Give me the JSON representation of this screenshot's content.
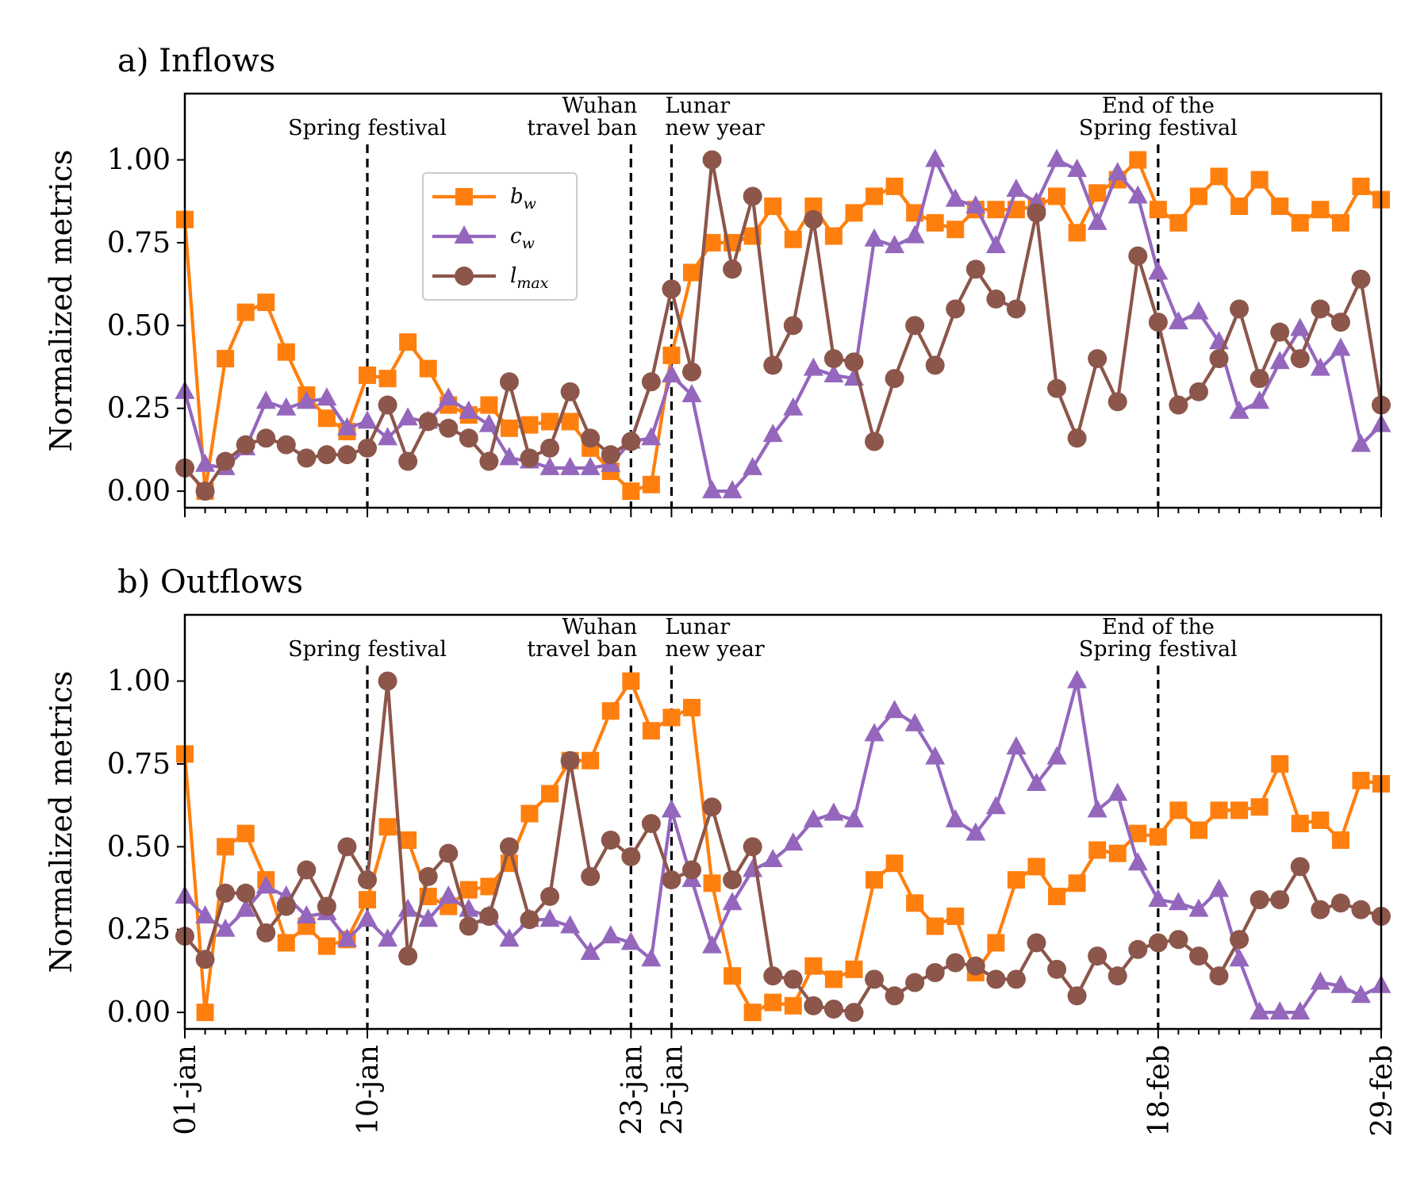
{
  "chart_data": {
    "type": "line",
    "x_labels": [
      "01-jan",
      "10-jan",
      "23-jan",
      "25-jan",
      "18-feb",
      "29-feb"
    ],
    "x_label_days": [
      1,
      10,
      23,
      25,
      49,
      60
    ],
    "x_range": [
      1,
      60
    ],
    "ylabel": "Normalized metrics",
    "yticks": [
      "0.00",
      "0.25",
      "0.50",
      "0.75",
      "1.00"
    ],
    "ytick_values": [
      0,
      0.25,
      0.5,
      0.75,
      1.0
    ],
    "ylim": [
      -0.05,
      1.2
    ],
    "events": [
      {
        "day": 10,
        "label_lines": [
          "Spring festival"
        ]
      },
      {
        "day": 23,
        "label_lines": [
          "Wuhan",
          "travel ban"
        ]
      },
      {
        "day": 25,
        "label_lines": [
          "Lunar",
          "new year"
        ]
      },
      {
        "day": 49,
        "label_lines": [
          "End of the",
          "Spring festival"
        ]
      }
    ],
    "legend": {
      "position": "upper-center",
      "entries": [
        {
          "series": "b_w",
          "base": "b",
          "sub": "w"
        },
        {
          "series": "c_w",
          "base": "c",
          "sub": "w"
        },
        {
          "series": "l_max",
          "base": "l",
          "sub": "max"
        }
      ]
    },
    "colors": {
      "b_w": "#ff7f0e",
      "c_w": "#9467bd",
      "l_max": "#8c564b"
    },
    "markers": {
      "b_w": "square",
      "c_w": "triangle",
      "l_max": "circle"
    },
    "panels": [
      {
        "title": "a) Inflows",
        "show_legend": true,
        "series": [
          {
            "name": "b_w",
            "values": [
              0.82,
              0.0,
              0.4,
              0.54,
              0.57,
              0.42,
              0.29,
              0.22,
              0.18,
              0.35,
              0.34,
              0.45,
              0.37,
              0.26,
              0.23,
              0.26,
              0.19,
              0.2,
              0.21,
              0.21,
              0.13,
              0.06,
              0.0,
              0.02,
              0.41,
              0.66,
              0.75,
              0.75,
              0.77,
              0.86,
              0.76,
              0.86,
              0.77,
              0.84,
              0.89,
              0.92,
              0.84,
              0.81,
              0.79,
              0.85,
              0.85,
              0.85,
              0.86,
              0.89,
              0.78,
              0.9,
              0.94,
              1.0,
              0.85,
              0.81,
              0.89,
              0.95,
              0.86,
              0.94,
              0.86,
              0.81,
              0.85,
              0.81,
              0.92,
              0.88
            ]
          },
          {
            "name": "c_w",
            "values": [
              0.3,
              0.08,
              0.07,
              0.13,
              0.27,
              0.25,
              0.27,
              0.28,
              0.19,
              0.21,
              0.16,
              0.22,
              0.21,
              0.28,
              0.24,
              0.2,
              0.1,
              0.09,
              0.07,
              0.07,
              0.07,
              0.08,
              0.15,
              0.16,
              0.35,
              0.29,
              0.0,
              0.0,
              0.07,
              0.17,
              0.25,
              0.37,
              0.35,
              0.34,
              0.76,
              0.74,
              0.77,
              1.0,
              0.88,
              0.86,
              0.74,
              0.91,
              0.87,
              1.0,
              0.97,
              0.81,
              0.96,
              0.89,
              0.66,
              0.51,
              0.54,
              0.45,
              0.24,
              0.27,
              0.39,
              0.49,
              0.37,
              0.43,
              0.14,
              0.2
            ]
          },
          {
            "name": "l_max",
            "values": [
              0.07,
              0.0,
              0.09,
              0.14,
              0.16,
              0.14,
              0.1,
              0.11,
              0.11,
              0.13,
              0.26,
              0.09,
              0.21,
              0.19,
              0.16,
              0.09,
              0.33,
              0.1,
              0.13,
              0.3,
              0.16,
              0.11,
              0.15,
              0.33,
              0.61,
              0.36,
              1.0,
              0.67,
              0.89,
              0.38,
              0.5,
              0.82,
              0.4,
              0.39,
              0.15,
              0.34,
              0.5,
              0.38,
              0.55,
              0.67,
              0.58,
              0.55,
              0.84,
              0.31,
              0.16,
              0.4,
              0.27,
              0.71,
              0.51,
              0.26,
              0.3,
              0.4,
              0.55,
              0.34,
              0.48,
              0.4,
              0.55,
              0.51,
              0.64,
              0.26
            ]
          }
        ]
      },
      {
        "title": "b) Outflows",
        "show_legend": false,
        "series": [
          {
            "name": "b_w",
            "values": [
              0.78,
              0.0,
              0.5,
              0.54,
              0.4,
              0.21,
              0.26,
              0.2,
              0.22,
              0.34,
              0.56,
              0.52,
              0.35,
              0.32,
              0.37,
              0.38,
              0.45,
              0.6,
              0.66,
              0.76,
              0.76,
              0.91,
              1.0,
              0.85,
              0.89,
              0.92,
              0.39,
              0.11,
              0.0,
              0.03,
              0.02,
              0.14,
              0.1,
              0.13,
              0.4,
              0.45,
              0.33,
              0.26,
              0.29,
              0.12,
              0.21,
              0.4,
              0.44,
              0.35,
              0.39,
              0.49,
              0.48,
              0.54,
              0.53,
              0.61,
              0.55,
              0.61,
              0.61,
              0.62,
              0.75,
              0.57,
              0.58,
              0.52,
              0.7,
              0.69
            ]
          },
          {
            "name": "c_w",
            "values": [
              0.35,
              0.29,
              0.25,
              0.31,
              0.38,
              0.35,
              0.29,
              0.3,
              0.22,
              0.28,
              0.22,
              0.31,
              0.28,
              0.35,
              0.31,
              0.29,
              0.22,
              0.28,
              0.28,
              0.26,
              0.18,
              0.23,
              0.21,
              0.16,
              0.61,
              0.4,
              0.2,
              0.33,
              0.43,
              0.46,
              0.51,
              0.58,
              0.6,
              0.58,
              0.84,
              0.91,
              0.87,
              0.77,
              0.58,
              0.54,
              0.62,
              0.8,
              0.69,
              0.77,
              1.0,
              0.61,
              0.66,
              0.45,
              0.34,
              0.33,
              0.31,
              0.37,
              0.16,
              0.0,
              0.0,
              0.0,
              0.09,
              0.08,
              0.05,
              0.08
            ]
          },
          {
            "name": "l_max",
            "values": [
              0.23,
              0.16,
              0.36,
              0.36,
              0.24,
              0.32,
              0.43,
              0.32,
              0.5,
              0.4,
              1.0,
              0.17,
              0.41,
              0.48,
              0.26,
              0.29,
              0.5,
              0.28,
              0.35,
              0.76,
              0.41,
              0.52,
              0.47,
              0.57,
              0.4,
              0.43,
              0.62,
              0.4,
              0.5,
              0.11,
              0.1,
              0.02,
              0.01,
              0.0,
              0.1,
              0.05,
              0.09,
              0.12,
              0.15,
              0.14,
              0.1,
              0.1,
              0.21,
              0.13,
              0.05,
              0.17,
              0.11,
              0.19,
              0.21,
              0.22,
              0.17,
              0.11,
              0.22,
              0.34,
              0.34,
              0.44,
              0.31,
              0.33,
              0.31,
              0.29
            ]
          }
        ]
      }
    ]
  }
}
